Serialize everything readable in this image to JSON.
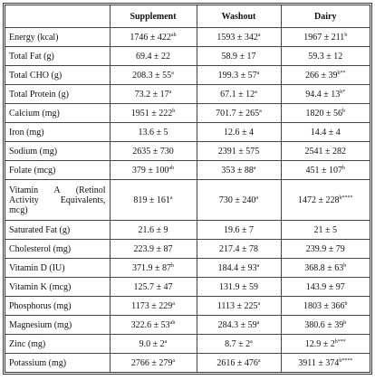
{
  "table": {
    "columns": [
      "Supplement",
      "Washout",
      "Dairy"
    ],
    "rows": [
      {
        "label": "Energy (kcal)",
        "cells": [
          {
            "value": "1746 ± 422",
            "sup": "ab"
          },
          {
            "value": "1593 ± 342",
            "sup": "a"
          },
          {
            "value": "1967 ± 211",
            "sup": "b"
          }
        ]
      },
      {
        "label": "Total Fat (g)",
        "cells": [
          {
            "value": "69.4 ± 22"
          },
          {
            "value": "58.9 ± 17"
          },
          {
            "value": "59.3 ± 12"
          }
        ]
      },
      {
        "label": "Total CHO (g)",
        "cells": [
          {
            "value": "208.3 ± 55",
            "sup": "a"
          },
          {
            "value": "199.3 ± 57",
            "sup": "a"
          },
          {
            "value": "266 ± 39",
            "sup": "b**"
          }
        ]
      },
      {
        "label": "Total Protein (g)",
        "cells": [
          {
            "value": "73.2 ± 17",
            "sup": "a"
          },
          {
            "value": "67.1 ± 12",
            "sup": "a"
          },
          {
            "value": "94.4 ± 13",
            "sup": "b*"
          }
        ]
      },
      {
        "label": "Calcium (mg)",
        "cells": [
          {
            "value": "1951 ± 222",
            "sup": "b"
          },
          {
            "value": "701.7 ± 265",
            "sup": "a"
          },
          {
            "value": "1820 ± 56",
            "sup": "b"
          }
        ]
      },
      {
        "label": "Iron (mg)",
        "cells": [
          {
            "value": "13.6 ± 5"
          },
          {
            "value": "12.6 ± 4"
          },
          {
            "value": "14.4 ± 4"
          }
        ]
      },
      {
        "label": "Sodium (mg)",
        "cells": [
          {
            "value": "2635 ± 730"
          },
          {
            "value": "2391 ± 575"
          },
          {
            "value": "2541 ± 282"
          }
        ]
      },
      {
        "label": "Folate (mcg)",
        "cells": [
          {
            "value": "379 ± 100",
            "sup": "ab"
          },
          {
            "value": "353 ± 88",
            "sup": "a"
          },
          {
            "value": "451 ± 107",
            "sup": "b"
          }
        ]
      },
      {
        "label": "Vitamin A (Retinol Activity Equivalents, mcg)",
        "cells": [
          {
            "value": "819 ± 161",
            "sup": "a"
          },
          {
            "value": "730 ± 240",
            "sup": "a"
          },
          {
            "value": "1472 ± 228",
            "sup": "b****"
          }
        ]
      },
      {
        "label": "Saturated Fat (g)",
        "cells": [
          {
            "value": "21.6 ± 9"
          },
          {
            "value": "19.6 ± 7"
          },
          {
            "value": "21 ± 5"
          }
        ]
      },
      {
        "label": "Cholesterol (mg)",
        "cells": [
          {
            "value": "223.9 ± 87"
          },
          {
            "value": "217.4 ± 78"
          },
          {
            "value": "239.9 ± 79"
          }
        ]
      },
      {
        "label": "Vitamin D (IU)",
        "cells": [
          {
            "value": "371.9 ± 87",
            "sup": "b"
          },
          {
            "value": "184.4 ± 93",
            "sup": "a"
          },
          {
            "value": "368.8 ± 63",
            "sup": "b"
          }
        ]
      },
      {
        "label": "Vitamin K (mcg)",
        "cells": [
          {
            "value": "125.7 ± 47"
          },
          {
            "value": "131.9 ± 59"
          },
          {
            "value": "143.9 ± 97"
          }
        ]
      },
      {
        "label": "Phosphorus (mg)",
        "cells": [
          {
            "value": "1173 ± 229",
            "sup": "a"
          },
          {
            "value": "1113 ± 225",
            "sup": "a"
          },
          {
            "value": "1803 ± 366",
            "sup": "b"
          }
        ]
      },
      {
        "label": "Magnesium (mg)",
        "cells": [
          {
            "value": "322.6 ± 53",
            "sup": "ab"
          },
          {
            "value": "284.3 ± 59",
            "sup": "a"
          },
          {
            "value": "380.6 ± 39",
            "sup": "b"
          }
        ]
      },
      {
        "label": "Zinc (mg)",
        "cells": [
          {
            "value": "9.0 ± 2",
            "sup": "a"
          },
          {
            "value": "8.7 ± 2",
            "sup": "a"
          },
          {
            "value": "12.9 ± 2",
            "sup": "b***"
          }
        ]
      },
      {
        "label": "Potassium (mg)",
        "cells": [
          {
            "value": "2766 ± 279",
            "sup": "a"
          },
          {
            "value": "2616 ± 476",
            "sup": "a"
          },
          {
            "value": "3911 ± 374",
            "sup": "b****"
          }
        ]
      }
    ]
  }
}
